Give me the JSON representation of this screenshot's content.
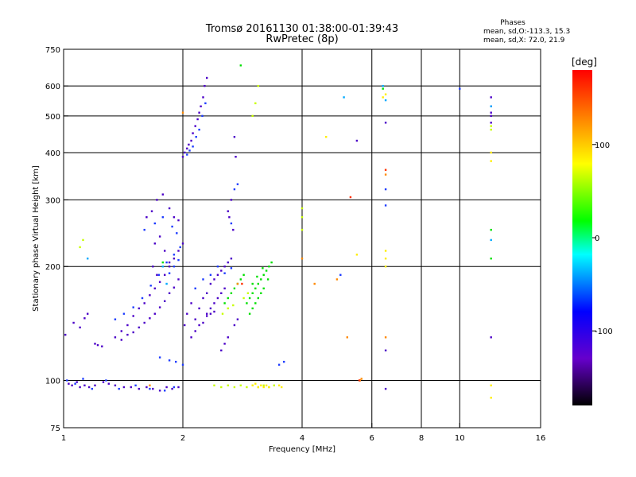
{
  "chart_data": {
    "type": "scatter",
    "title": "Tromsø 20161130 01:38:00-01:39:43",
    "subtitle": "RwPretec (8p)",
    "xlabel": "Frequency [MHz]",
    "ylabel": "Stationary phase Virtual Height [km]",
    "x_scale": "log",
    "y_scale": "log",
    "xlim": [
      1,
      16
    ],
    "ylim": [
      75,
      750
    ],
    "x_ticks": [
      1,
      2,
      4,
      6,
      8,
      10,
      16
    ],
    "y_ticks": [
      75,
      100,
      200,
      300,
      400,
      500,
      600,
      750
    ],
    "x_gridlines": [
      2,
      4,
      6,
      8,
      10
    ],
    "y_gridlines": [
      100,
      200,
      300,
      400,
      500,
      600
    ],
    "grid": true,
    "phases_box": {
      "heading": "Phases",
      "line1": "mean, sd,O:-113.3, 15.3",
      "line2": "mean, sd,X:  72.0, 21.9"
    },
    "colorbar": {
      "label": "[deg]",
      "range": [
        -180,
        180
      ],
      "ticks": [
        100,
        0,
        -100
      ],
      "colormap": [
        "#000000",
        "#6600cc",
        "#0000ff",
        "#00ffff",
        "#00ff00",
        "#ffff00",
        "#ff8000",
        "#ff0000"
      ]
    },
    "series": [
      {
        "color": "#4b00c8",
        "points": [
          [
            1.03,
            98
          ],
          [
            1.05,
            97
          ],
          [
            1.08,
            99
          ],
          [
            1.1,
            96
          ],
          [
            1.13,
            97
          ],
          [
            1.16,
            96
          ],
          [
            1.2,
            97
          ],
          [
            1.26,
            99
          ],
          [
            1.3,
            98
          ],
          [
            1.35,
            97
          ],
          [
            1.42,
            96
          ],
          [
            1.48,
            96
          ],
          [
            1.55,
            95
          ],
          [
            1.62,
            96
          ],
          [
            1.68,
            95
          ],
          [
            1.75,
            94
          ],
          [
            1.82,
            96
          ],
          [
            1.88,
            95
          ],
          [
            1.95,
            96
          ],
          [
            1.01,
            132
          ],
          [
            1.06,
            142
          ],
          [
            1.1,
            138
          ],
          [
            1.13,
            146
          ],
          [
            1.15,
            150
          ],
          [
            1.2,
            125
          ],
          [
            1.22,
            124
          ],
          [
            1.25,
            123
          ],
          [
            1.35,
            130
          ],
          [
            1.4,
            135
          ],
          [
            1.45,
            140
          ],
          [
            1.5,
            148
          ],
          [
            1.55,
            155
          ],
          [
            1.6,
            160
          ],
          [
            1.65,
            168
          ],
          [
            1.7,
            175
          ],
          [
            1.75,
            182
          ],
          [
            1.8,
            190
          ],
          [
            1.85,
            200
          ],
          [
            1.9,
            210
          ],
          [
            1.95,
            220
          ],
          [
            2.0,
            230
          ],
          [
            1.4,
            128
          ],
          [
            1.45,
            132
          ],
          [
            1.5,
            134
          ],
          [
            1.55,
            138
          ],
          [
            1.6,
            142
          ],
          [
            1.65,
            146
          ],
          [
            1.7,
            150
          ],
          [
            1.75,
            156
          ],
          [
            1.8,
            162
          ],
          [
            1.85,
            170
          ],
          [
            1.9,
            176
          ],
          [
            1.95,
            185
          ],
          [
            1.62,
            270
          ],
          [
            1.67,
            280
          ],
          [
            1.72,
            300
          ],
          [
            1.78,
            310
          ],
          [
            1.85,
            285
          ],
          [
            1.9,
            270
          ],
          [
            1.95,
            265
          ],
          [
            1.75,
            240
          ],
          [
            1.7,
            230
          ],
          [
            1.8,
            220
          ],
          [
            1.85,
            205
          ],
          [
            1.68,
            200
          ],
          [
            1.72,
            190
          ],
          [
            2.02,
            140
          ],
          [
            2.05,
            150
          ],
          [
            2.1,
            160
          ],
          [
            2.15,
            145
          ],
          [
            2.2,
            155
          ],
          [
            2.25,
            165
          ],
          [
            2.3,
            170
          ],
          [
            2.35,
            180
          ],
          [
            2.4,
            185
          ],
          [
            2.45,
            190
          ],
          [
            2.5,
            195
          ],
          [
            2.55,
            200
          ],
          [
            2.6,
            205
          ],
          [
            2.65,
            210
          ],
          [
            2.3,
            150
          ],
          [
            2.35,
            155
          ],
          [
            2.4,
            160
          ],
          [
            2.45,
            165
          ],
          [
            2.5,
            170
          ],
          [
            2.55,
            175
          ],
          [
            2.0,
            390
          ],
          [
            2.02,
            400
          ],
          [
            2.05,
            410
          ],
          [
            2.07,
            420
          ],
          [
            2.1,
            430
          ],
          [
            2.12,
            450
          ],
          [
            2.15,
            470
          ],
          [
            2.18,
            490
          ],
          [
            2.2,
            510
          ],
          [
            2.22,
            530
          ],
          [
            2.25,
            560
          ],
          [
            2.27,
            600
          ],
          [
            2.3,
            630
          ],
          [
            2.6,
            280
          ],
          [
            2.65,
            300
          ],
          [
            2.62,
            270
          ],
          [
            2.68,
            250
          ],
          [
            2.7,
            440
          ],
          [
            2.72,
            390
          ],
          [
            2.5,
            120
          ],
          [
            2.55,
            125
          ],
          [
            2.6,
            130
          ],
          [
            2.7,
            140
          ],
          [
            2.75,
            145
          ],
          [
            2.1,
            130
          ],
          [
            2.15,
            135
          ],
          [
            2.2,
            140
          ],
          [
            2.25,
            142
          ],
          [
            2.3,
            148
          ],
          [
            2.35,
            150
          ],
          [
            2.4,
            152
          ],
          [
            5.5,
            430
          ],
          [
            6.5,
            480
          ],
          [
            6.5,
            120
          ],
          [
            6.5,
            95
          ],
          [
            12.0,
            530
          ],
          [
            12.0,
            560
          ],
          [
            12.0,
            510
          ],
          [
            12.0,
            500
          ],
          [
            12.0,
            480
          ],
          [
            12.0,
            130
          ]
        ]
      },
      {
        "color": "#1e3cff",
        "points": [
          [
            1.02,
            100
          ],
          [
            1.07,
            98
          ],
          [
            1.12,
            101
          ],
          [
            1.18,
            95
          ],
          [
            1.28,
            100
          ],
          [
            1.38,
            95
          ],
          [
            1.52,
            97
          ],
          [
            1.65,
            95
          ],
          [
            1.8,
            94
          ],
          [
            1.9,
            96
          ],
          [
            1.35,
            145
          ],
          [
            1.42,
            150
          ],
          [
            1.5,
            156
          ],
          [
            1.58,
            165
          ],
          [
            1.66,
            178
          ],
          [
            1.74,
            190
          ],
          [
            1.82,
            205
          ],
          [
            1.9,
            215
          ],
          [
            1.97,
            225
          ],
          [
            1.6,
            250
          ],
          [
            1.7,
            260
          ],
          [
            1.78,
            270
          ],
          [
            1.88,
            255
          ],
          [
            1.93,
            245
          ],
          [
            1.85,
            192
          ],
          [
            1.9,
            200
          ],
          [
            1.95,
            208
          ],
          [
            2.05,
            395
          ],
          [
            2.08,
            405
          ],
          [
            2.12,
            415
          ],
          [
            2.16,
            440
          ],
          [
            2.2,
            460
          ],
          [
            2.24,
            500
          ],
          [
            2.28,
            540
          ],
          [
            2.15,
            175
          ],
          [
            2.25,
            185
          ],
          [
            2.35,
            190
          ],
          [
            2.45,
            200
          ],
          [
            2.55,
            192
          ],
          [
            2.65,
            198
          ],
          [
            1.75,
            115
          ],
          [
            1.85,
            113
          ],
          [
            1.92,
            112
          ],
          [
            2.0,
            110
          ],
          [
            2.65,
            260
          ],
          [
            2.7,
            320
          ],
          [
            2.75,
            330
          ],
          [
            3.5,
            110
          ],
          [
            3.6,
            112
          ],
          [
            5.0,
            190
          ],
          [
            6.5,
            320
          ],
          [
            6.5,
            290
          ],
          [
            10.0,
            590
          ]
        ]
      },
      {
        "color": "#00aaff",
        "points": [
          [
            1.78,
            200
          ],
          [
            1.82,
            180
          ],
          [
            1.15,
            210
          ],
          [
            5.1,
            560
          ],
          [
            6.5,
            550
          ],
          [
            6.4,
            600
          ],
          [
            12.0,
            530
          ],
          [
            12.0,
            235
          ]
        ]
      },
      {
        "color": "#00e000",
        "points": [
          [
            2.55,
            160
          ],
          [
            2.6,
            165
          ],
          [
            2.65,
            170
          ],
          [
            2.7,
            175
          ],
          [
            2.75,
            180
          ],
          [
            2.8,
            185
          ],
          [
            2.85,
            190
          ],
          [
            2.9,
            160
          ],
          [
            2.95,
            165
          ],
          [
            3.0,
            170
          ],
          [
            3.05,
            175
          ],
          [
            3.1,
            180
          ],
          [
            3.15,
            185
          ],
          [
            3.2,
            190
          ],
          [
            3.25,
            195
          ],
          [
            3.3,
            200
          ],
          [
            3.35,
            205
          ],
          [
            2.95,
            150
          ],
          [
            3.0,
            155
          ],
          [
            3.05,
            160
          ],
          [
            3.1,
            165
          ],
          [
            3.15,
            170
          ],
          [
            3.2,
            175
          ],
          [
            3.0,
            180
          ],
          [
            3.08,
            188
          ],
          [
            3.18,
            198
          ],
          [
            3.28,
            185
          ],
          [
            2.8,
            680
          ],
          [
            6.4,
            590
          ],
          [
            12.0,
            250
          ],
          [
            12.0,
            210
          ],
          [
            1.78,
            205
          ]
        ]
      },
      {
        "color": "#c8ff00",
        "points": [
          [
            2.4,
            97
          ],
          [
            2.5,
            96
          ],
          [
            2.6,
            97
          ],
          [
            2.7,
            96
          ],
          [
            2.8,
            97
          ],
          [
            2.9,
            96
          ],
          [
            3.0,
            97
          ],
          [
            3.1,
            96
          ],
          [
            3.2,
            97
          ],
          [
            3.3,
            96
          ],
          [
            3.4,
            97
          ],
          [
            2.52,
            150
          ],
          [
            2.6,
            155
          ],
          [
            2.68,
            158
          ],
          [
            2.85,
            165
          ],
          [
            2.92,
            170
          ],
          [
            3.0,
            500
          ],
          [
            3.05,
            540
          ],
          [
            3.1,
            600
          ],
          [
            1.1,
            225
          ],
          [
            1.12,
            235
          ],
          [
            4.0,
            285
          ],
          [
            4.0,
            270
          ],
          [
            4.0,
            250
          ],
          [
            12.0,
            460
          ],
          [
            12.0,
            470
          ]
        ]
      },
      {
        "color": "#ffee00",
        "points": [
          [
            3.0,
            97
          ],
          [
            3.05,
            98
          ],
          [
            3.1,
            96
          ],
          [
            3.15,
            97
          ],
          [
            3.2,
            96
          ],
          [
            3.25,
            97
          ],
          [
            3.3,
            96
          ],
          [
            3.5,
            97
          ],
          [
            3.55,
            96
          ],
          [
            4.6,
            440
          ],
          [
            5.5,
            215
          ],
          [
            6.5,
            220
          ],
          [
            6.5,
            210
          ],
          [
            6.5,
            200
          ],
          [
            6.4,
            560
          ],
          [
            6.5,
            570
          ],
          [
            12.0,
            90
          ],
          [
            12.0,
            97
          ],
          [
            12.0,
            400
          ],
          [
            12.0,
            380
          ]
        ]
      },
      {
        "color": "#ff8800",
        "points": [
          [
            5.2,
            130
          ],
          [
            5.6,
            100
          ],
          [
            5.65,
            101
          ],
          [
            6.5,
            350
          ],
          [
            6.5,
            130
          ],
          [
            4.0,
            210
          ],
          [
            4.3,
            180
          ],
          [
            4.9,
            185
          ],
          [
            2.75,
            180
          ],
          [
            2.0,
            510
          ],
          [
            1.65,
            97
          ]
        ]
      },
      {
        "color": "#ff3000",
        "points": [
          [
            2.82,
            180
          ],
          [
            5.3,
            305
          ],
          [
            6.5,
            360
          ],
          [
            5.58,
            100
          ]
        ]
      }
    ]
  }
}
